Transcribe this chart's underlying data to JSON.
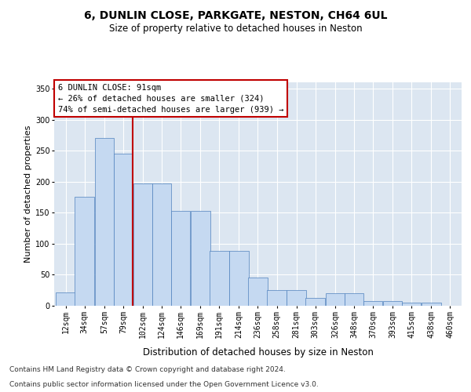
{
  "title": "6, DUNLIN CLOSE, PARKGATE, NESTON, CH64 6UL",
  "subtitle": "Size of property relative to detached houses in Neston",
  "xlabel": "Distribution of detached houses by size in Neston",
  "ylabel": "Number of detached properties",
  "footnote1": "Contains HM Land Registry data © Crown copyright and database right 2024.",
  "footnote2": "Contains public sector information licensed under the Open Government Licence v3.0.",
  "annotation_line1": "6 DUNLIN CLOSE: 91sqm",
  "annotation_line2": "← 26% of detached houses are smaller (324)",
  "annotation_line3": "74% of semi-detached houses are larger (939) →",
  "bar_labels": [
    "12sqm",
    "34sqm",
    "57sqm",
    "79sqm",
    "102sqm",
    "124sqm",
    "146sqm",
    "169sqm",
    "191sqm",
    "214sqm",
    "236sqm",
    "258sqm",
    "281sqm",
    "303sqm",
    "326sqm",
    "348sqm",
    "370sqm",
    "393sqm",
    "415sqm",
    "438sqm",
    "460sqm"
  ],
  "bar_label_values": [
    12,
    34,
    57,
    79,
    102,
    124,
    146,
    169,
    191,
    214,
    236,
    258,
    281,
    303,
    326,
    348,
    370,
    393,
    415,
    438,
    460
  ],
  "bar_values": [
    22,
    175,
    270,
    245,
    197,
    197,
    153,
    153,
    88,
    88,
    46,
    25,
    25,
    13,
    20,
    20,
    7,
    7,
    5,
    5,
    0
  ],
  "bar_color": "#c5d9f1",
  "bar_edge_color": "#4f81bd",
  "vline_color": "#c00000",
  "vline_x_idx": 3,
  "ylim": [
    0,
    360
  ],
  "yticks": [
    0,
    50,
    100,
    150,
    200,
    250,
    300,
    350
  ],
  "bg_color": "#dce6f1",
  "grid_color": "#ffffff",
  "title_fontsize": 10,
  "subtitle_fontsize": 8.5,
  "ylabel_fontsize": 8,
  "xlabel_fontsize": 8.5,
  "tick_fontsize": 7,
  "annot_fontsize": 7.5,
  "footnote_fontsize": 6.5
}
